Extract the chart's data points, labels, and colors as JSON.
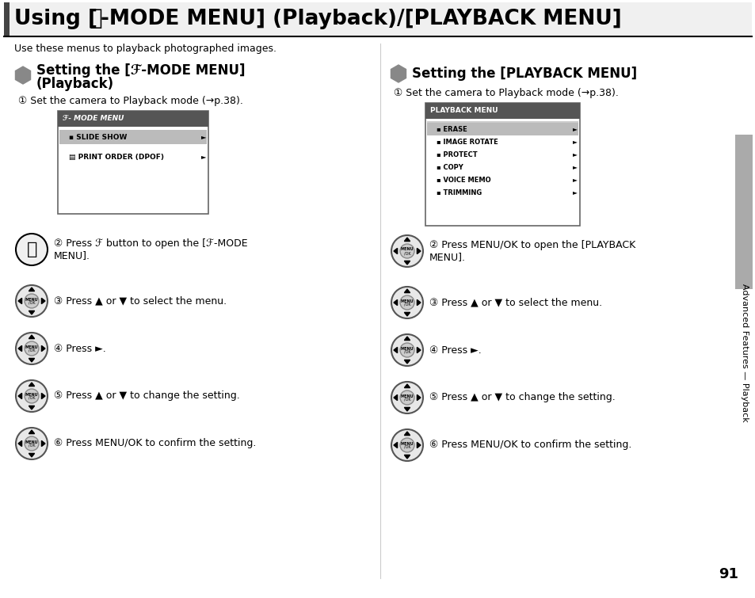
{
  "bg_color": "#ffffff",
  "title_text_pre": "Using [",
  "title_text_f": "ℱ",
  "title_text_post": "-MODE MENU] (Playback)/[PLAYBACK MENU]",
  "subtitle_text": "Use these menus to playback photographed images.",
  "left_heading1": "Setting the [ℱ-MODE MENU]",
  "left_heading2": "(Playback)",
  "right_heading": "Setting the [PLAYBACK MENU]",
  "step1_text": "① Set the camera to Playback mode (→p.38).",
  "left_step2a": "② Press ℱ button to open the [ℱ-MODE",
  "left_step2b": "MENU].",
  "left_step3": "③ Press ▲ or ▼ to select the menu.",
  "left_step4": "④ Press ►.",
  "left_step5": "⑤ Press ▲ or ▼ to change the setting.",
  "left_step6": "⑥ Press MENU/OK to confirm the setting.",
  "right_step2a": "② Press MENU/OK to open the [PLAYBACK",
  "right_step2b": "MENU].",
  "right_step3": "③ Press ▲ or ▼ to select the menu.",
  "right_step4": "④ Press ►.",
  "right_step5": "⑤ Press ▲ or ▼ to change the setting.",
  "right_step6": "⑥ Press MENU/OK to confirm the setting.",
  "page_number": "91",
  "side_text": "Advanced Features — Playback",
  "menu1_title": "ℱ- MODE MENU",
  "menu1_items": [
    "SLIDE SHOW",
    "PRINT ORDER (DPOF)"
  ],
  "menu2_title": "PLAYBACK MENU",
  "menu2_items": [
    "ERASE",
    "IMAGE ROTATE",
    "PROTECT",
    "COPY",
    "VOICE MEMO",
    "TRIMMING"
  ],
  "hexagon_color": "#888888",
  "side_bar_color": "#aaaaaa",
  "title_bg": "#f0f0f0",
  "title_bar_color": "#444444",
  "nav_outer": "#555555",
  "nav_fill": "#e8e8e8",
  "nav_inner": "#cccccc",
  "nav_inner_ring": "#888888",
  "menu_header_dark": "#555555",
  "menu_sel_gray": "#aaaaaa",
  "menu_scroll_gray": "#cccccc"
}
